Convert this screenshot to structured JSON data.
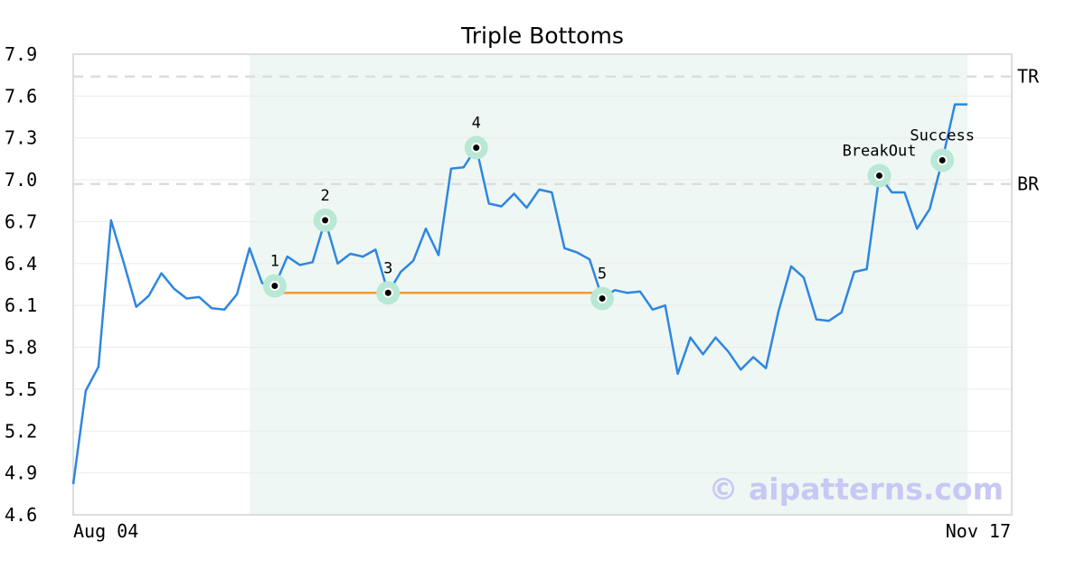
{
  "chart_data": {
    "type": "line",
    "title": "Triple Bottoms",
    "xlabel": "",
    "ylabel": "",
    "x_ticks": [
      "Aug 04",
      "Nov 17"
    ],
    "y_ticks": [
      "7.9",
      "7.6",
      "7.3",
      "7.0",
      "6.7",
      "6.4",
      "6.1",
      "5.8",
      "5.5",
      "5.2",
      "4.9",
      "4.6"
    ],
    "ylim": [
      4.6,
      7.9
    ],
    "grid": "horizontal",
    "series": [
      {
        "color": "#2f86e0",
        "values": [
          4.82,
          5.49,
          5.66,
          6.71,
          6.41,
          6.09,
          6.17,
          6.33,
          6.22,
          6.15,
          6.16,
          6.08,
          6.07,
          6.18,
          6.51,
          6.26,
          6.24,
          6.45,
          6.39,
          6.41,
          6.71,
          6.4,
          6.47,
          6.45,
          6.5,
          6.19,
          6.34,
          6.42,
          6.65,
          6.46,
          7.08,
          7.09,
          7.23,
          6.83,
          6.81,
          6.9,
          6.8,
          6.93,
          6.91,
          6.51,
          6.48,
          6.43,
          6.15,
          6.21,
          6.19,
          6.2,
          6.07,
          6.1,
          5.61,
          5.87,
          5.75,
          5.87,
          5.77,
          5.64,
          5.73,
          5.65,
          6.06,
          6.38,
          6.3,
          6.0,
          5.99,
          6.05,
          6.34,
          6.36,
          7.03,
          6.91,
          6.91,
          6.65,
          6.79,
          7.14,
          7.54,
          7.54
        ]
      }
    ],
    "pattern_region": {
      "start_index": 14,
      "end_index": 71
    },
    "support_line": {
      "from_index": 16,
      "to_index": 42,
      "value": 6.19,
      "color": "#f59a2c"
    },
    "levels": [
      {
        "label": "TR",
        "value": 7.74
      },
      {
        "label": "BR",
        "value": 6.97
      }
    ],
    "markers": [
      {
        "label": "1",
        "index": 16,
        "value": 6.24
      },
      {
        "label": "2",
        "index": 20,
        "value": 6.71
      },
      {
        "label": "3",
        "index": 25,
        "value": 6.19
      },
      {
        "label": "4",
        "index": 32,
        "value": 7.23
      },
      {
        "label": "5",
        "index": 42,
        "value": 6.15
      },
      {
        "label": "BreakOut",
        "index": 64,
        "value": 7.03
      },
      {
        "label": "Success",
        "index": 69,
        "value": 7.14
      }
    ]
  },
  "watermark": "© aipatterns.com",
  "colors": {
    "line": "#2f86e0",
    "region": "#eef7f3",
    "marker_halo": "#b9e8d5",
    "support": "#f59a2c",
    "level_line": "#dddddd",
    "grid": "#ebebeb",
    "axes": "#dddddd"
  }
}
